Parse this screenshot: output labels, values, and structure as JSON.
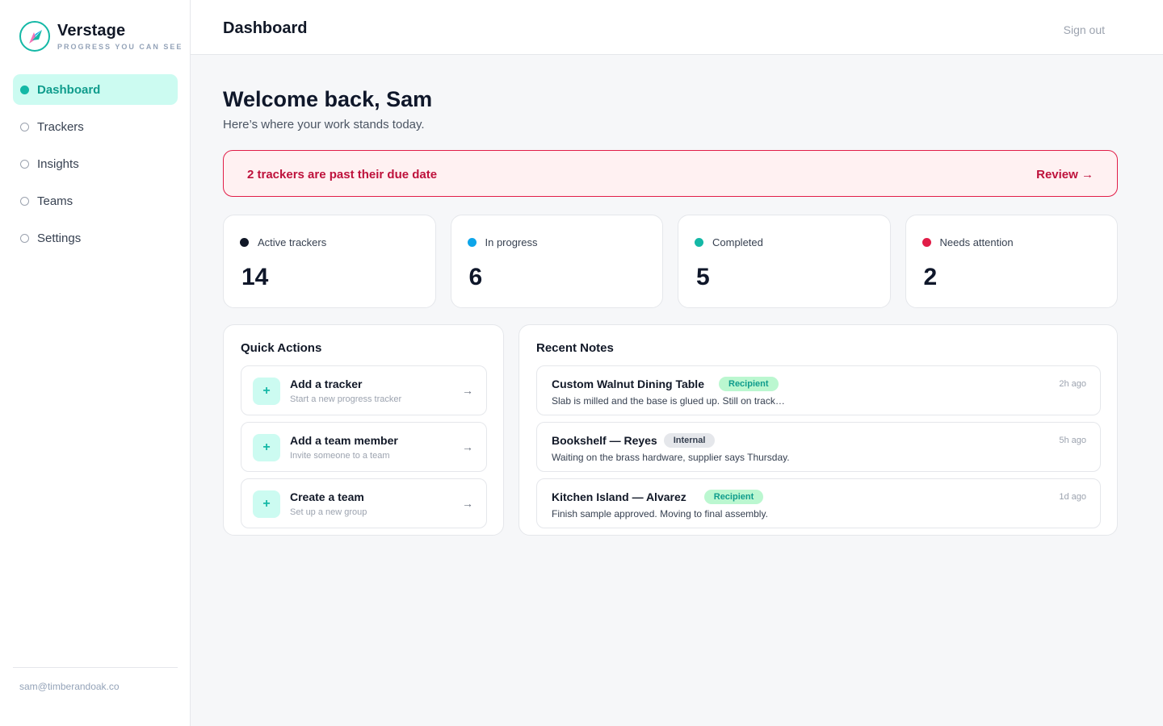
{
  "brand": {
    "name": "Verstage",
    "tagline": "PROGRESS YOU CAN SEE"
  },
  "nav": [
    {
      "label": "Dashboard",
      "active": true
    },
    {
      "label": "Trackers",
      "active": false
    },
    {
      "label": "Insights",
      "active": false
    },
    {
      "label": "Teams",
      "active": false
    },
    {
      "label": "Settings",
      "active": false
    }
  ],
  "user": {
    "email": "sam@timberandoak.co"
  },
  "header": {
    "title": "Dashboard",
    "signout": "Sign out"
  },
  "welcome": {
    "title": "Welcome back, Sam",
    "subtitle": "Here’s where your work stands today."
  },
  "alert": {
    "message": "2 trackers are past their due date",
    "action": "Review →"
  },
  "stats": [
    {
      "label": "Active trackers",
      "value": "14",
      "color": "#111827"
    },
    {
      "label": "In progress",
      "value": "6",
      "color": "#0ea5e9"
    },
    {
      "label": "Completed",
      "value": "5",
      "color": "#14b8a6"
    },
    {
      "label": "Needs attention",
      "value": "2",
      "color": "#e11d48"
    }
  ],
  "quick_actions": {
    "title": "Quick Actions",
    "items": [
      {
        "icon": "plus-icon",
        "title": "Add a tracker",
        "subtitle": "Start a new progress tracker",
        "arrow": "→"
      },
      {
        "icon": "plus-icon",
        "title": "Add a team member",
        "subtitle": "Invite someone to a team",
        "arrow": "→"
      },
      {
        "icon": "plus-icon",
        "title": "Create a team",
        "subtitle": "Set up a new group",
        "arrow": "→"
      }
    ]
  },
  "recent_notes": {
    "title": "Recent Notes",
    "items": [
      {
        "title": "Custom Walnut Dining Table",
        "badge": "Recipient",
        "badge_type": "recipient",
        "text": "Slab is milled and the base is glued up. Still on track…",
        "time": "2h ago"
      },
      {
        "title": "Bookshelf — Reyes",
        "badge": "Internal",
        "badge_type": "internal",
        "text": "Waiting on the brass hardware, supplier says Thursday.",
        "time": "5h ago"
      },
      {
        "title": "Kitchen Island — Alvarez",
        "badge": "Recipient",
        "badge_type": "recipient",
        "text": "Finish sample approved. Moving to final assembly.",
        "time": "1d ago"
      }
    ]
  }
}
